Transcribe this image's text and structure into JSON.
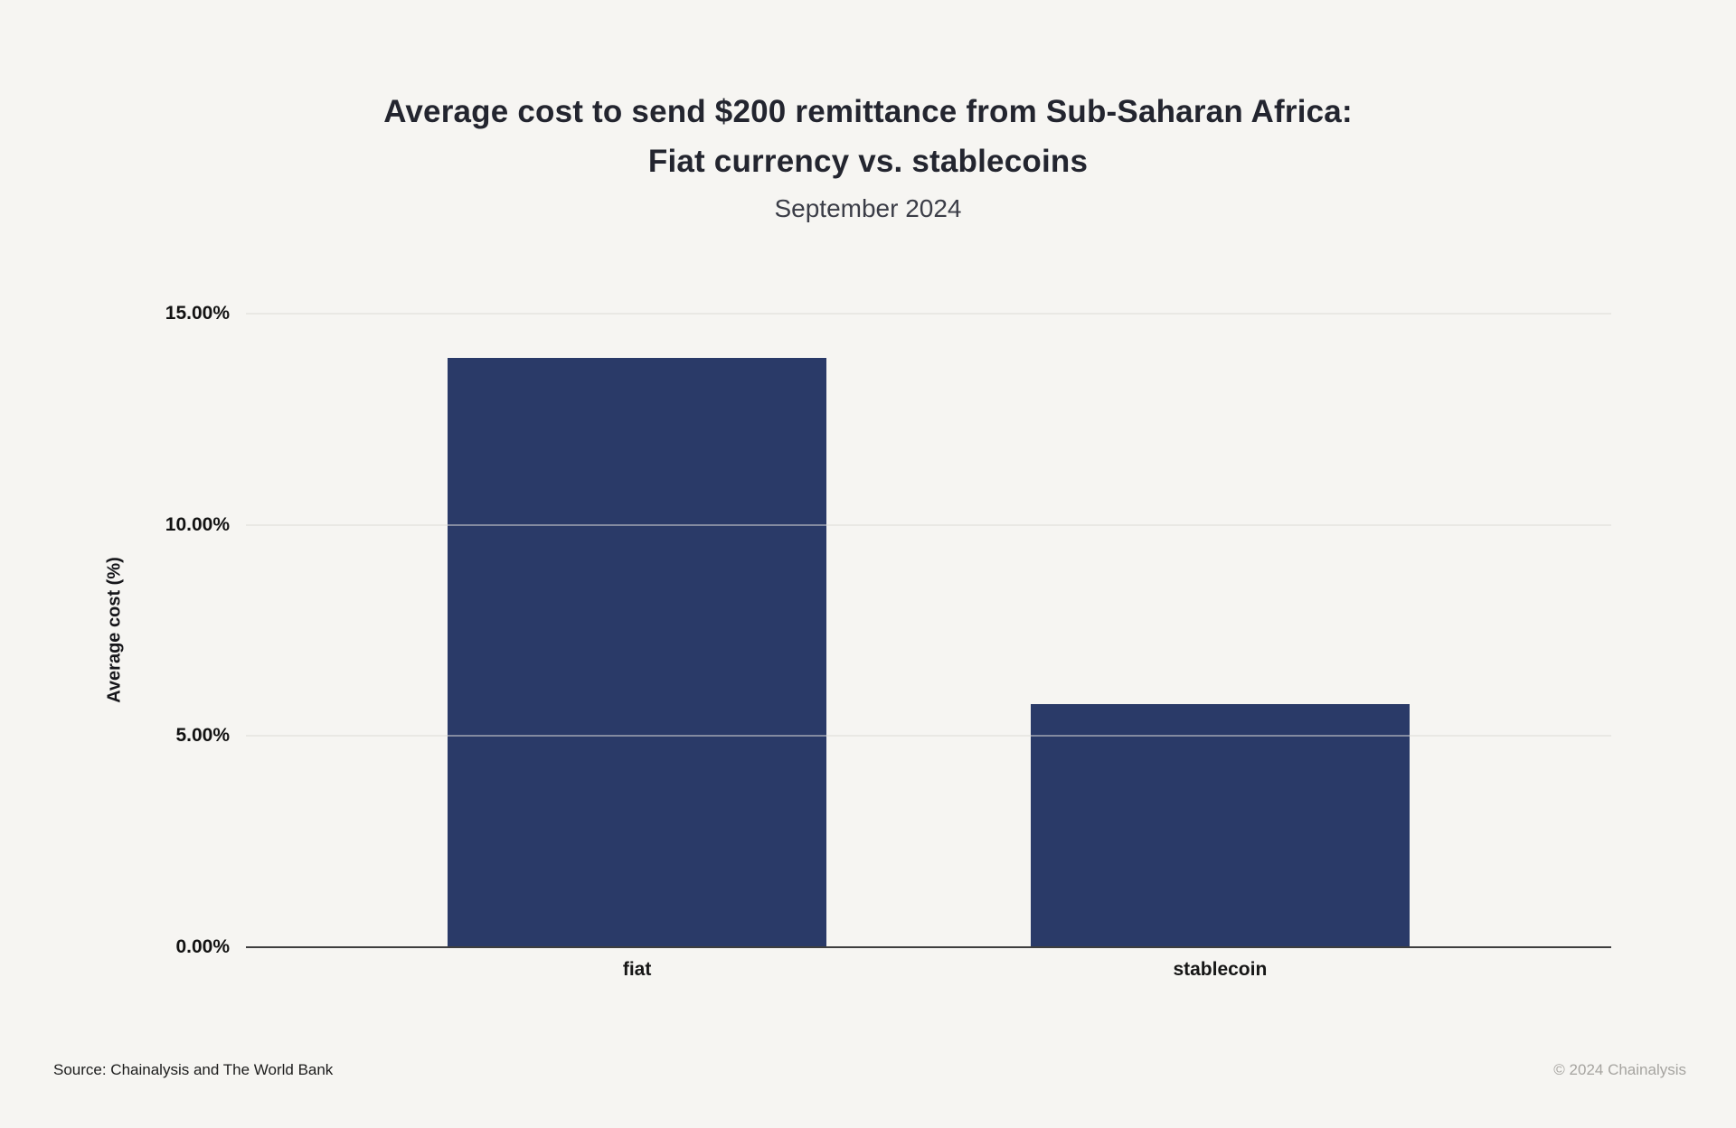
{
  "title": {
    "line1": "Average cost to send $200 remittance from Sub-Saharan Africa:",
    "line2": "Fiat currency vs. stablecoins",
    "subtitle": "September 2024"
  },
  "footer": {
    "source": "Source: Chainalysis and The World Bank",
    "copyright": "© 2024 Chainalysis"
  },
  "colors": {
    "background": "#f6f5f2",
    "bar": "#2a3a68",
    "gridline": "#dcdbd7",
    "axis": "#3e3e3e"
  },
  "chart_data": {
    "type": "bar",
    "title": "Average cost to send $200 remittance from Sub-Saharan Africa: Fiat currency vs. stablecoins",
    "subtitle": "September 2024",
    "categories": [
      "fiat",
      "stablecoin"
    ],
    "values": [
      13.95,
      5.75
    ],
    "xlabel": "",
    "ylabel": "Average cost (%)",
    "ylim": [
      0,
      15
    ],
    "yticks": [
      0,
      5,
      10,
      15
    ],
    "ytick_labels": [
      "0.00%",
      "5.00%",
      "10.00%",
      "15.00%"
    ],
    "grid": true,
    "legend": "none",
    "bar_color": "#2a3a68"
  }
}
